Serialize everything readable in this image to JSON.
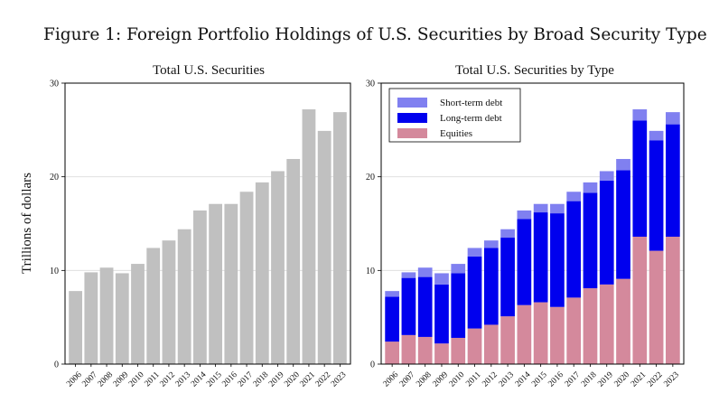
{
  "figure": {
    "title": "Figure 1: Foreign Portfolio Holdings of U.S. Securities by Broad Security Type",
    "ylabel": "Trillions of dollars"
  },
  "colors": {
    "total": "#c0c0c0",
    "short_term_debt": "#8080f0",
    "long_term_debt": "#0000ee",
    "equities": "#d4899c",
    "grid": "#e0e0e0"
  },
  "chart_data": [
    {
      "type": "bar",
      "title": "Total U.S. Securities",
      "xlabel": "",
      "ylabel": "Trillions of dollars",
      "ylim": [
        0,
        30
      ],
      "yticks": [
        0,
        10,
        20,
        30
      ],
      "grid": true,
      "categories": [
        "2006",
        "2007",
        "2008",
        "2009",
        "2010",
        "2011",
        "2012",
        "2013",
        "2014",
        "2015",
        "2016",
        "2017",
        "2018",
        "2019",
        "2020",
        "2021",
        "2022",
        "2023"
      ],
      "series": [
        {
          "values": [
            7.8,
            9.8,
            10.3,
            9.7,
            10.7,
            12.4,
            13.2,
            14.4,
            16.4,
            17.1,
            17.1,
            18.4,
            19.4,
            20.6,
            21.9,
            27.2,
            24.9,
            26.9
          ]
        }
      ]
    },
    {
      "type": "bar",
      "stacked": true,
      "title": "Total U.S. Securities by Type",
      "xlabel": "",
      "ylabel": "",
      "ylim": [
        0,
        30
      ],
      "yticks": [
        0,
        10,
        20,
        30
      ],
      "grid": true,
      "legend": "top-left",
      "categories": [
        "2006",
        "2007",
        "2008",
        "2009",
        "2010",
        "2011",
        "2012",
        "2013",
        "2014",
        "2015",
        "2016",
        "2017",
        "2018",
        "2019",
        "2020",
        "2021",
        "2022",
        "2023"
      ],
      "series": [
        {
          "name": "Equities",
          "values": [
            2.4,
            3.1,
            2.9,
            2.2,
            2.8,
            3.8,
            4.2,
            5.1,
            6.3,
            6.6,
            6.1,
            7.1,
            8.1,
            8.5,
            9.1,
            13.6,
            12.1,
            13.6
          ]
        },
        {
          "name": "Long-term debt",
          "values": [
            4.8,
            6.1,
            6.4,
            6.3,
            6.9,
            7.7,
            8.2,
            8.4,
            9.2,
            9.6,
            10.0,
            10.3,
            10.2,
            11.1,
            11.6,
            12.4,
            11.8,
            12.0
          ]
        },
        {
          "name": "Short-term debt",
          "values": [
            0.6,
            0.6,
            1.0,
            1.2,
            1.0,
            0.9,
            0.8,
            0.9,
            0.9,
            0.9,
            1.0,
            1.0,
            1.1,
            1.0,
            1.2,
            1.2,
            1.0,
            1.3
          ]
        }
      ],
      "legend_order": [
        "Short-term debt",
        "Long-term debt",
        "Equities"
      ]
    }
  ]
}
